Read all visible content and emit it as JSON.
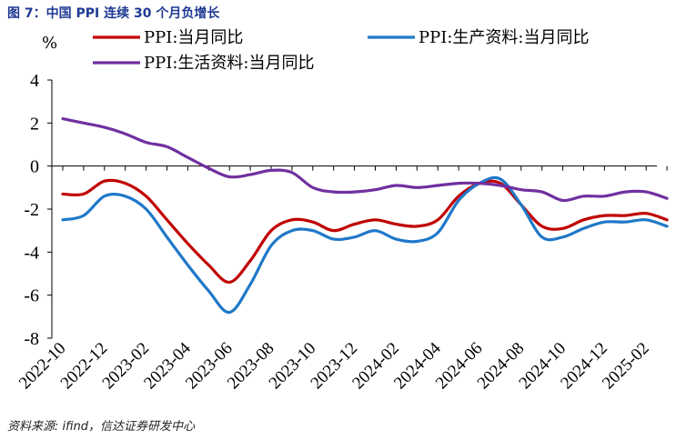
{
  "figure": {
    "title": "图 7：中国 PPI 连续 30 个月负增长",
    "source": "资料来源: ifind，信达证券研发中心"
  },
  "chart_data": {
    "type": "line",
    "title": "",
    "ylabel": "%",
    "ylim": [
      -8,
      4
    ],
    "yticks": [
      4,
      2,
      0,
      -2,
      -4,
      -6,
      -8
    ],
    "x": [
      "2022-10",
      "2022-11",
      "2022-12",
      "2023-01",
      "2023-02",
      "2023-03",
      "2023-04",
      "2023-05",
      "2023-06",
      "2023-07",
      "2023-08",
      "2023-09",
      "2023-10",
      "2023-11",
      "2023-12",
      "2024-01",
      "2024-02",
      "2024-03",
      "2024-04",
      "2024-05",
      "2024-06",
      "2024-07",
      "2024-08",
      "2024-09",
      "2024-10",
      "2024-11",
      "2024-12",
      "2025-01",
      "2025-02",
      "2025-03"
    ],
    "xtick_labels": [
      "2022-10",
      "2022-12",
      "2023-02",
      "2023-04",
      "2023-06",
      "2023-08",
      "2023-10",
      "2023-12",
      "2024-02",
      "2024-04",
      "2024-06",
      "2024-08",
      "2024-10",
      "2024-12",
      "2025-02"
    ],
    "grid": false,
    "legend_position": "top",
    "series": [
      {
        "name": "PPI:当月同比",
        "color": "#c00000",
        "values": [
          -1.3,
          -1.3,
          -0.7,
          -0.8,
          -1.4,
          -2.5,
          -3.6,
          -4.6,
          -5.4,
          -4.4,
          -3.0,
          -2.5,
          -2.6,
          -3.0,
          -2.7,
          -2.5,
          -2.7,
          -2.8,
          -2.5,
          -1.4,
          -0.8,
          -0.8,
          -1.8,
          -2.8,
          -2.9,
          -2.5,
          -2.3,
          -2.3,
          -2.2,
          -2.5
        ]
      },
      {
        "name": "PPI:生产资料:当月同比",
        "color": "#1f78c8",
        "values": [
          -2.5,
          -2.3,
          -1.4,
          -1.4,
          -2.0,
          -3.3,
          -4.6,
          -5.8,
          -6.8,
          -5.5,
          -3.7,
          -3.0,
          -3.0,
          -3.4,
          -3.3,
          -3.0,
          -3.4,
          -3.5,
          -3.1,
          -1.6,
          -0.8,
          -0.6,
          -1.8,
          -3.3,
          -3.3,
          -2.9,
          -2.6,
          -2.6,
          -2.5,
          -2.8
        ]
      },
      {
        "name": "PPI:生活资料:当月同比",
        "color": "#7030a0",
        "values": [
          2.2,
          2.0,
          1.8,
          1.5,
          1.1,
          0.9,
          0.4,
          -0.1,
          -0.5,
          -0.4,
          -0.2,
          -0.3,
          -1.0,
          -1.2,
          -1.2,
          -1.1,
          -0.9,
          -1.0,
          -0.9,
          -0.8,
          -0.8,
          -0.9,
          -1.1,
          -1.2,
          -1.6,
          -1.4,
          -1.4,
          -1.2,
          -1.2,
          -1.5
        ]
      }
    ]
  }
}
